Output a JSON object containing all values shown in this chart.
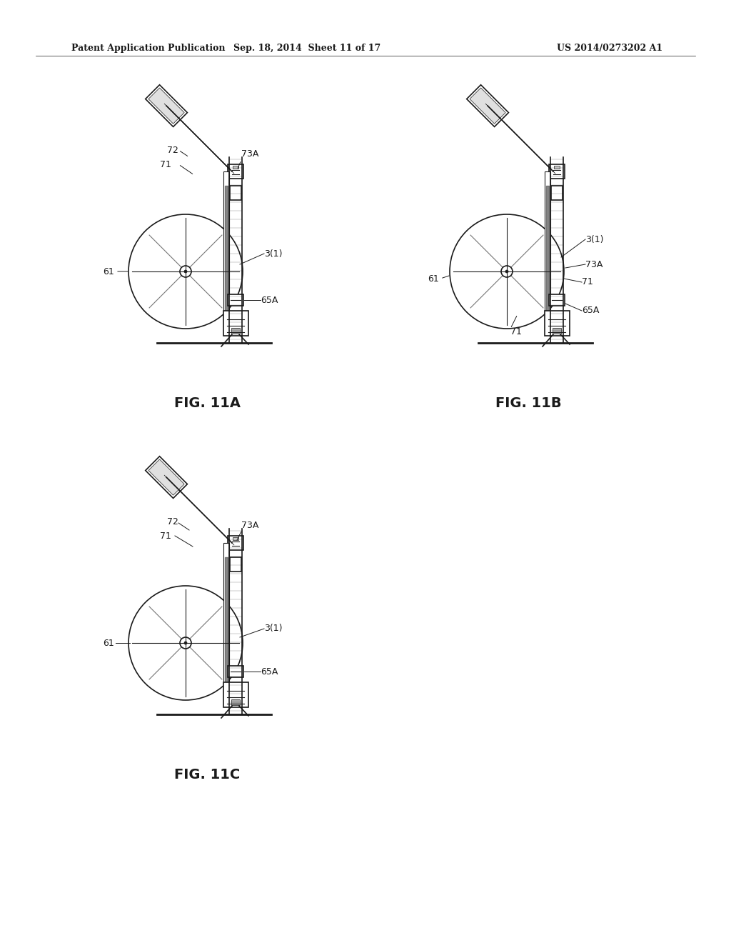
{
  "bg_color": "#ffffff",
  "header_left": "Patent Application Publication",
  "header_mid": "Sep. 18, 2014  Sheet 11 of 17",
  "header_right": "US 2014/0273202 A1",
  "fig_labels": [
    "FIG. 11A",
    "FIG. 11B",
    "FIG. 11C"
  ],
  "line_color": "#1a1a1a",
  "lw_thin": 0.8,
  "lw_med": 1.2,
  "lw_thick": 2.0
}
